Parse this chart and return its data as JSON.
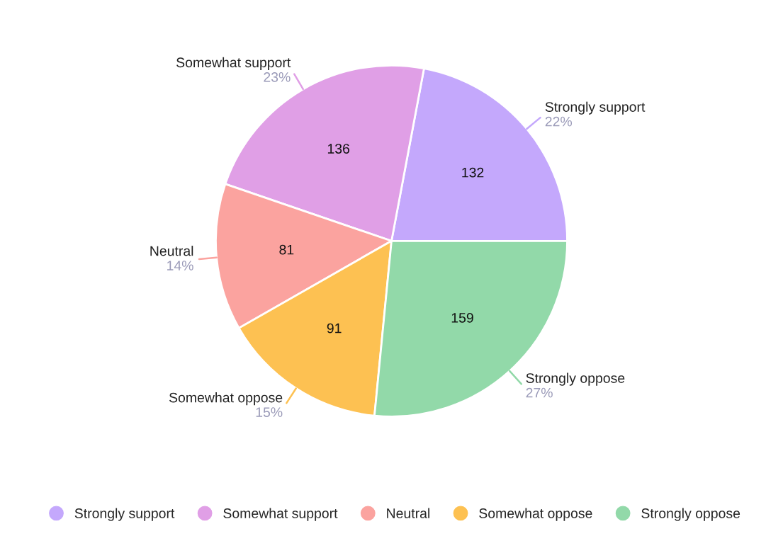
{
  "chart_data": {
    "type": "pie",
    "categories": [
      "Strongly support",
      "Somewhat support",
      "Neutral",
      "Somewhat oppose",
      "Strongly oppose"
    ],
    "values": [
      132,
      136,
      81,
      91,
      159
    ],
    "colors": [
      "#c4a8fc",
      "#e09fe6",
      "#fba39f",
      "#fdc152",
      "#92d9a9"
    ],
    "value_labels": [
      "132",
      "136",
      "81",
      "91",
      "159"
    ],
    "annotations": [
      "22%",
      "23%",
      "14%",
      "15%",
      "27%"
    ],
    "legend": "bottom"
  }
}
